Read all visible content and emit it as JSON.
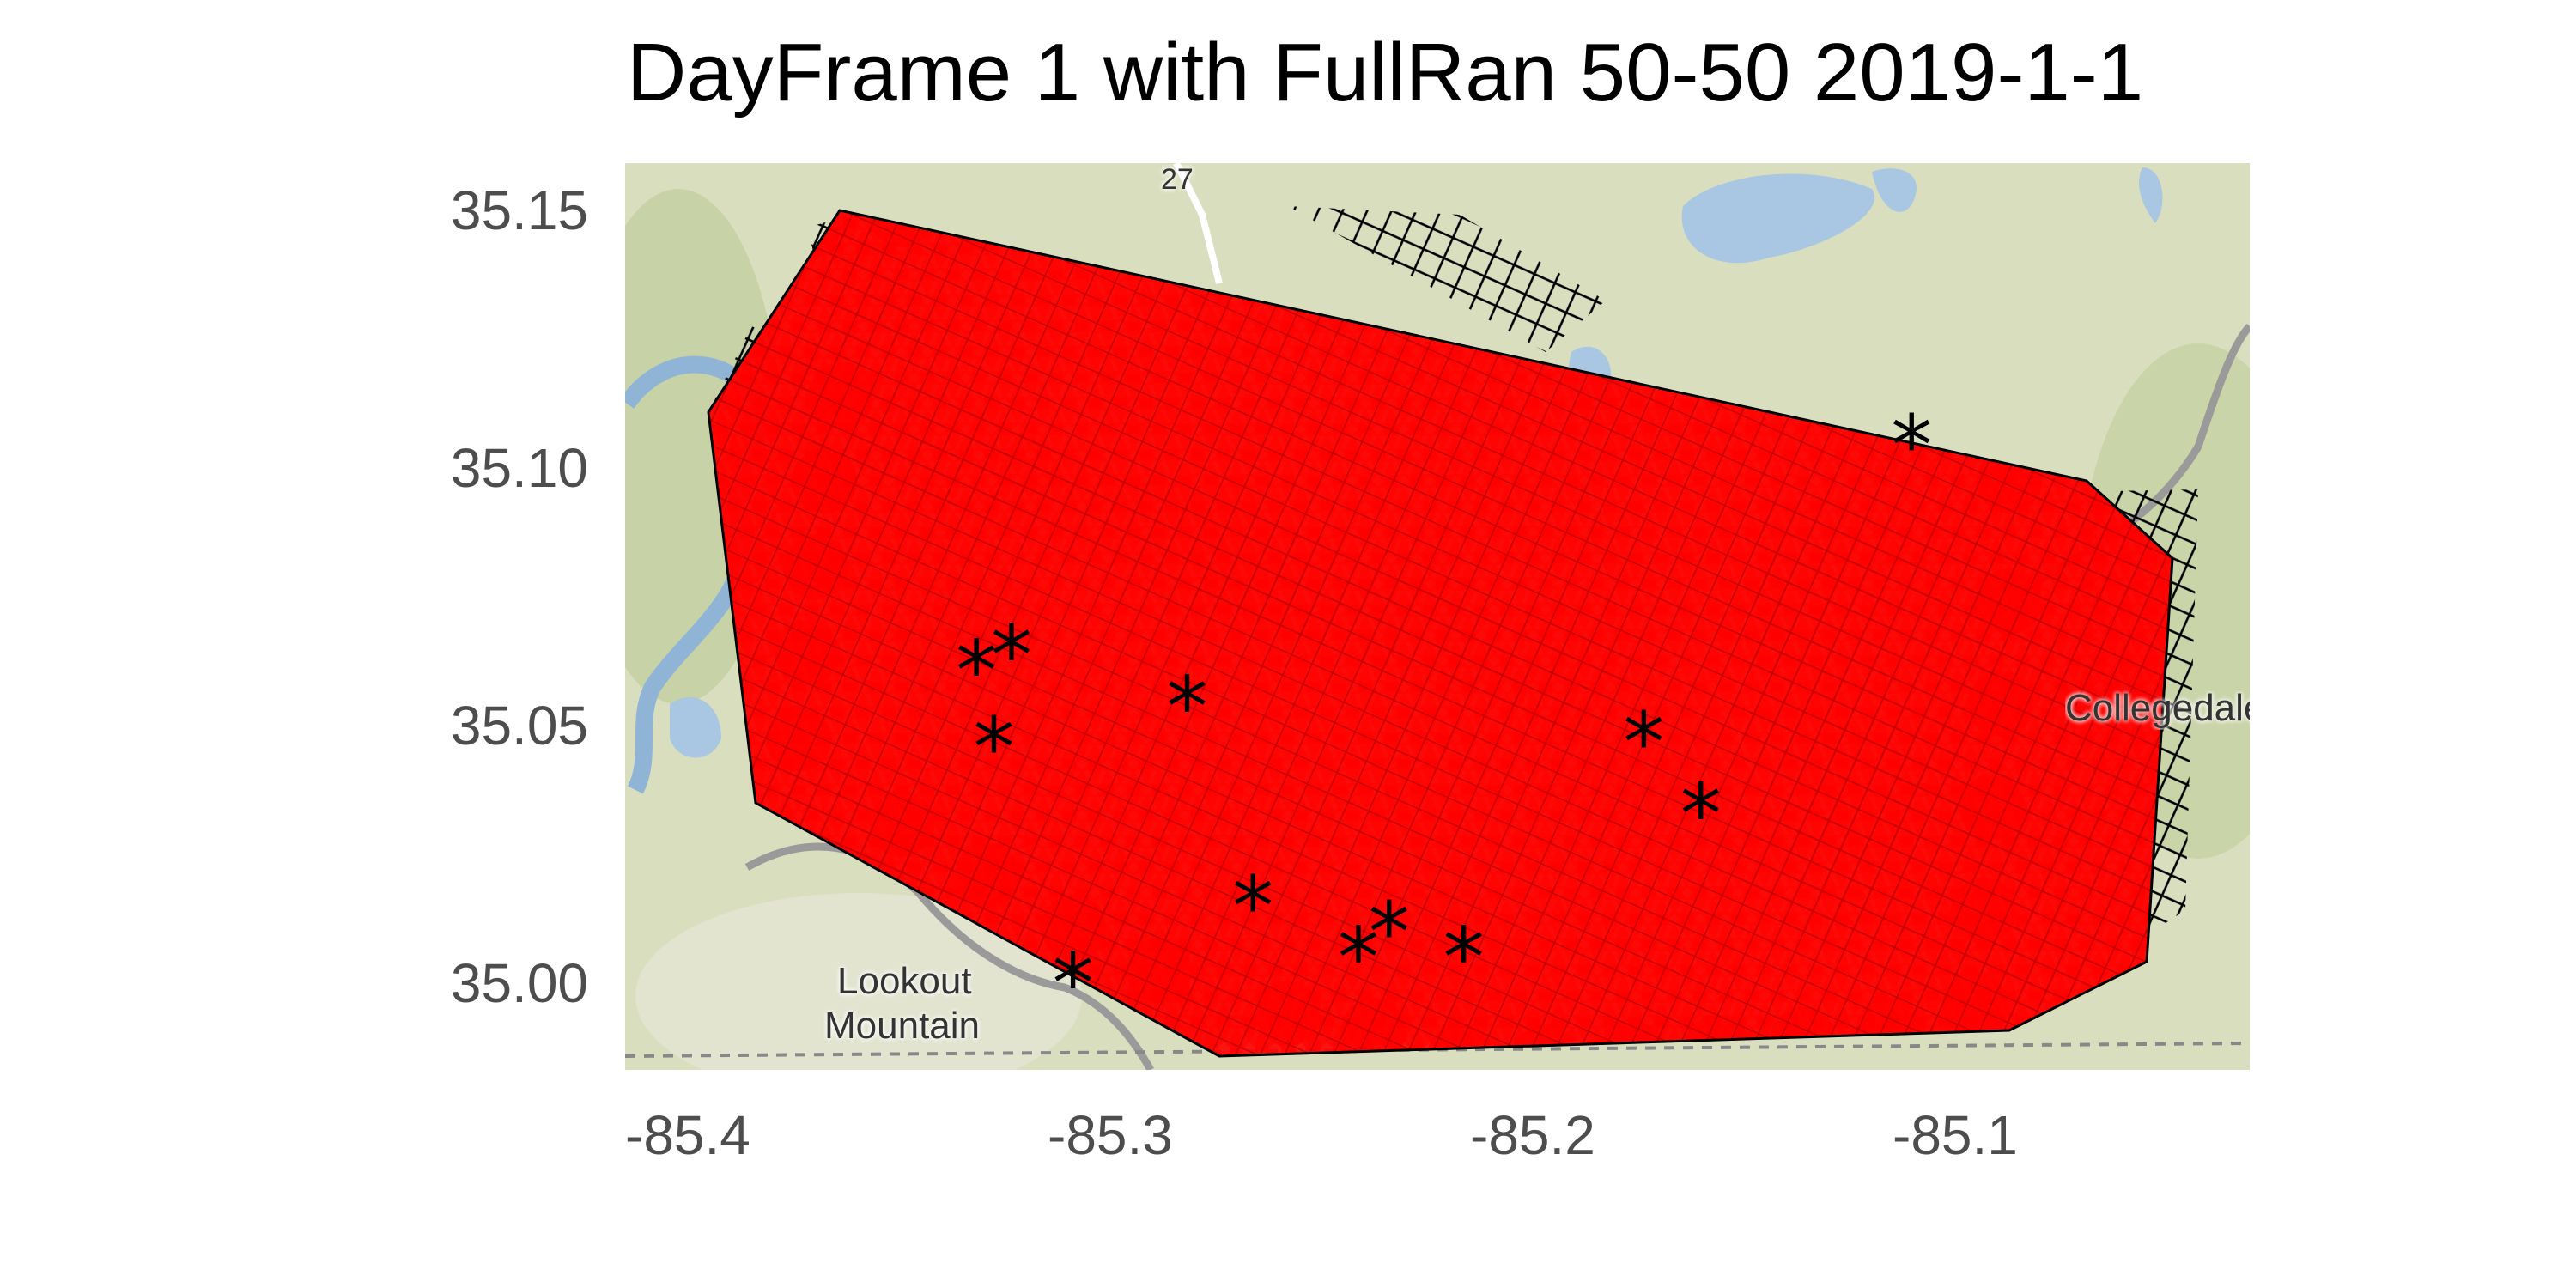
{
  "title": "DayFrame 1 with FullRan 50-50 2019-1-1",
  "chart_data": {
    "type": "scatter",
    "title": "DayFrame 1 with FullRan 50-50 2019-1-1",
    "xlabel": "",
    "ylabel": "",
    "xlim": [
      -85.4,
      -85.03
    ],
    "ylim": [
      34.983,
      35.16
    ],
    "x_ticks": [
      "-85.4",
      "-85.3",
      "-85.2",
      "-85.1"
    ],
    "y_ticks": [
      "35.15",
      "35.10",
      "35.05",
      "35.00"
    ],
    "grid": false,
    "basemap_labels": [
      "Lookout",
      "Mountain",
      "Collegedale",
      "27"
    ],
    "colors": {
      "coverage": "#ff0000",
      "grid_lines": "#000000",
      "markers": "#000000"
    },
    "series": [
      {
        "kind": "star-markers",
        "points": [
          {
            "x": -85.107,
            "y": 35.105
          },
          {
            "x": -85.32,
            "y": 35.061
          },
          {
            "x": -85.312,
            "y": 35.064
          },
          {
            "x": -85.316,
            "y": 35.046
          },
          {
            "x": -85.272,
            "y": 35.054
          },
          {
            "x": -85.168,
            "y": 35.047
          },
          {
            "x": -85.155,
            "y": 35.033
          },
          {
            "x": -85.257,
            "y": 35.015
          },
          {
            "x": -85.226,
            "y": 35.01
          },
          {
            "x": -85.233,
            "y": 35.005
          },
          {
            "x": -85.209,
            "y": 35.005
          },
          {
            "x": -85.298,
            "y": 35.0
          }
        ]
      }
    ]
  }
}
